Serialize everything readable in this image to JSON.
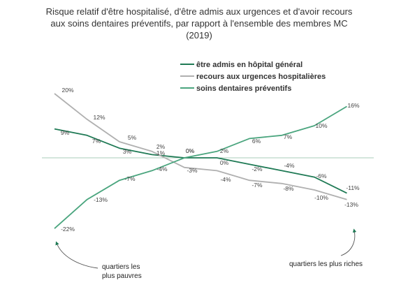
{
  "chart_data": {
    "type": "line",
    "title": "Risque relatif d'être hospitalisé, d'être admis aux urgences et d'avoir recours aux soins dentaires préventifs, par rapport à l'ensemble des membres MC (2019)",
    "xlabel": "",
    "ylabel": "",
    "x": [
      1,
      2,
      3,
      4,
      5,
      6,
      7,
      8,
      9,
      10
    ],
    "ylim": [
      -25,
      22
    ],
    "grid": false,
    "zero_line": true,
    "legend_position": "top-right",
    "colors": {
      "hospital": "#1f7a55",
      "emergency": "#b0b0b0",
      "dental": "#4aa57e",
      "zero_line": "#a8cdb8"
    },
    "series": [
      {
        "key": "hospital",
        "name": "être admis en hôpital général",
        "values": [
          9,
          7,
          3,
          1,
          0,
          0,
          -2,
          -4,
          -6,
          -11
        ],
        "labels": [
          "9%",
          "7%",
          "3%",
          "1%",
          "0%",
          "0%",
          "-2%",
          "-4%",
          "-6%",
          "-11%"
        ]
      },
      {
        "key": "emergency",
        "name": "recours aux urgences hospitalières",
        "values": [
          20,
          12,
          5,
          2,
          -3,
          -4,
          -7,
          -8,
          -10,
          -13
        ],
        "labels": [
          "20%",
          "12%",
          "5%",
          "2%",
          "-3%",
          "-4%",
          "-7%",
          "-8%",
          "-10%",
          "-13%"
        ]
      },
      {
        "key": "dental",
        "name": "soins dentaires préventifs",
        "values": [
          -22,
          -13,
          -7,
          -4,
          0,
          2,
          6,
          7,
          10,
          16
        ],
        "labels": [
          "-22%",
          "-13%",
          "-7%",
          "-4%",
          "0%",
          "2%",
          "6%",
          "7%",
          "10%",
          "16%"
        ]
      }
    ],
    "annotations": {
      "left": [
        "quartiers les",
        "plus pauvres"
      ],
      "right": "quartiers les plus riches"
    }
  }
}
